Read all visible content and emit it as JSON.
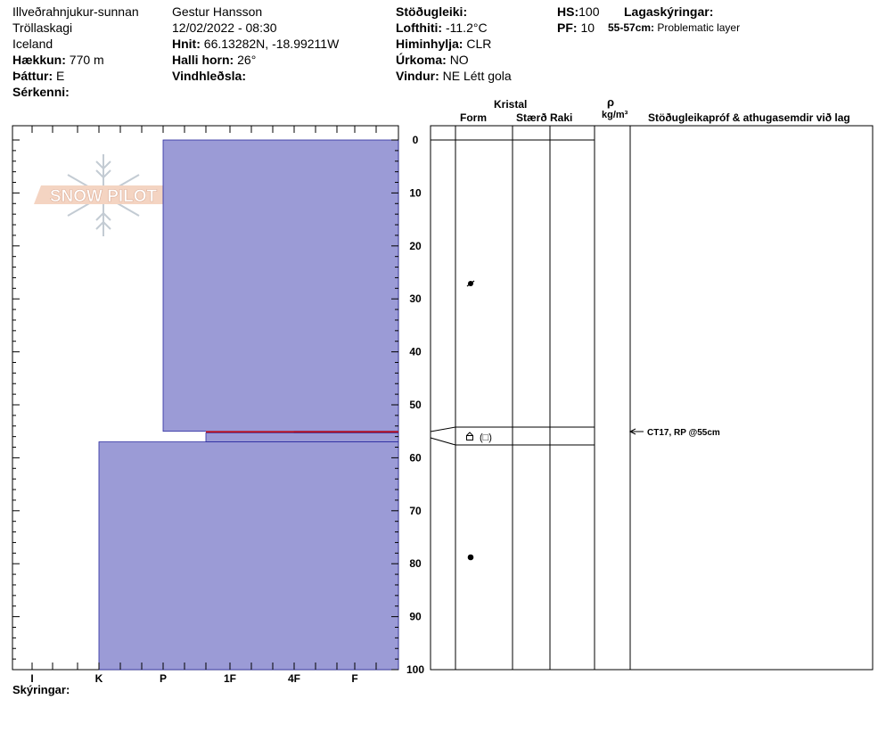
{
  "location": {
    "name": "Illveðrahnjukur-sunnan",
    "region": "Tröllaskagi",
    "country": "Iceland",
    "elevation_label": "Hækkun:",
    "elevation": "770 m",
    "aspect_label": "Þáttur:",
    "aspect": "E",
    "features_label": "Sérkenni:"
  },
  "observer": {
    "name": "Gestur Hansson",
    "datetime": "12/02/2022 - 08:30",
    "coords_label": "Hnit:",
    "coords": "66.13282N, -18.99211W",
    "slope_label": "Halli horn:",
    "slope": "26°",
    "wind_loading_label": "Vindhleðsla:"
  },
  "conditions": {
    "stability_label": "Stöðugleiki:",
    "air_temp_label": "Lofthiti:",
    "air_temp": "-11.2°C",
    "sky_label": "Himinhylja:",
    "sky": "CLR",
    "precip_label": "Úrkoma:",
    "precip": "NO",
    "wind_label": "Vindur:",
    "wind": "NE Létt gola"
  },
  "summary": {
    "hs_label": "HS:",
    "hs": "100",
    "pf_label": "PF:",
    "pf": "10",
    "legend_label": "Lagaskýringar:",
    "problem_range": "55-57cm:",
    "problem_text": "Problematic layer"
  },
  "columns": {
    "crystal": "Kristal",
    "form": "Form",
    "size": "Stærð",
    "moisture": "Raki",
    "rho": "ρ",
    "density_unit": "kg/m³",
    "tests": "Stöðugleikapróf & athugasemdir við lag"
  },
  "hardness_axis": [
    "I",
    "K",
    "P",
    "1F",
    "4F",
    "F"
  ],
  "depth_ticks": [
    0,
    10,
    20,
    30,
    40,
    50,
    60,
    70,
    80,
    90,
    100
  ],
  "layers": [
    {
      "top": 0,
      "bottom": 55,
      "hardness": "P",
      "form": "precip-particles"
    },
    {
      "top": 55,
      "bottom": 55.3,
      "hardness": "4F",
      "form": "surface-hoar-thin"
    },
    {
      "top": 55.3,
      "bottom": 57,
      "hardness": "1F-",
      "form": "depth-hoar (faceted)",
      "form_label": "(□)"
    },
    {
      "top": 57,
      "bottom": 100,
      "hardness": "K",
      "form": "rounded-grains"
    }
  ],
  "test_result": "CT17, RP @55cm",
  "remarks_label": "Skýringar:",
  "logo_text": "SNOW PILOT",
  "colors": {
    "layer_fill": "#9b9bd6",
    "layer_stroke": "#2a2aa0",
    "problem_line": "#d01010",
    "grid": "#000000",
    "logo": "#e8b8a0"
  }
}
